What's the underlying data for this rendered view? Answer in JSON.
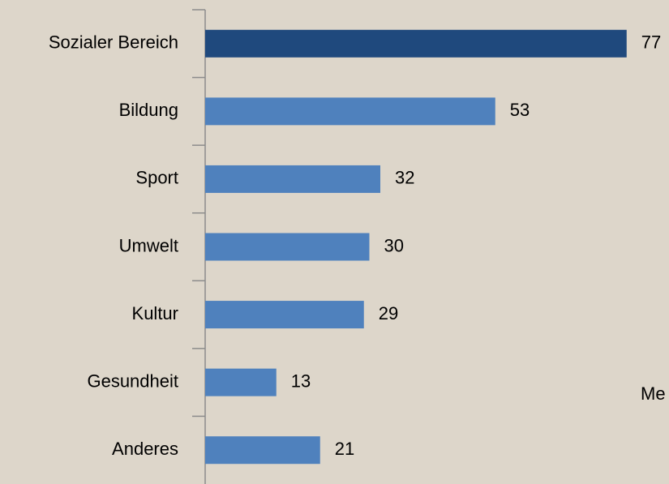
{
  "chart_data": {
    "type": "barh",
    "categories": [
      "Sozialer Bereich",
      "Bildung",
      "Sport",
      "Umwelt",
      "Kultur",
      "Gesundheit",
      "Anderes"
    ],
    "values": [
      77,
      53,
      32,
      30,
      29,
      13,
      21
    ],
    "colors": [
      "#1f497d",
      "#4f81bd",
      "#4f81bd",
      "#4f81bd",
      "#4f81bd",
      "#4f81bd",
      "#4f81bd"
    ],
    "xlim": [
      0,
      80
    ],
    "annotation": "Me"
  }
}
